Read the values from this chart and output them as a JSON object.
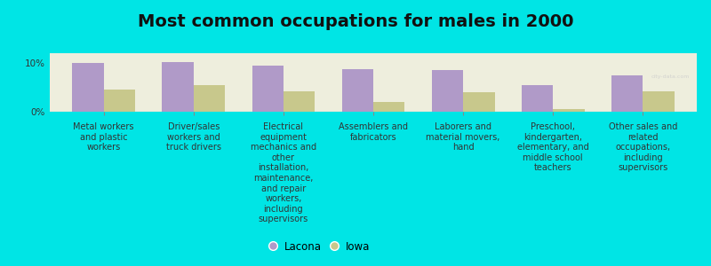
{
  "title": "Most common occupations for males in 2000",
  "categories": [
    "Metal workers\nand plastic\nworkers",
    "Driver/sales\nworkers and\ntruck drivers",
    "Electrical\nequipment\nmechanics and\nother\ninstallation,\nmaintenance,\nand repair\nworkers,\nincluding\nsupervisors",
    "Assemblers and\nfabricators",
    "Laborers and\nmaterial movers,\nhand",
    "Preschool,\nkindergarten,\nelementary, and\nmiddle school\nteachers",
    "Other sales and\nrelated\noccupations,\nincluding\nsupervisors"
  ],
  "lacona_values": [
    10.0,
    10.2,
    9.5,
    8.8,
    8.5,
    5.5,
    7.5
  ],
  "iowa_values": [
    4.5,
    5.5,
    4.2,
    2.0,
    4.0,
    0.5,
    4.2
  ],
  "lacona_color": "#b09ac8",
  "iowa_color": "#c8c88c",
  "background_color": "#00e5e5",
  "plot_bg_color": "#eeeedd",
  "ylim": [
    0,
    12
  ],
  "bar_width": 0.35,
  "legend_labels": [
    "Lacona",
    "Iowa"
  ],
  "title_fontsize": 14,
  "label_fontsize": 7
}
